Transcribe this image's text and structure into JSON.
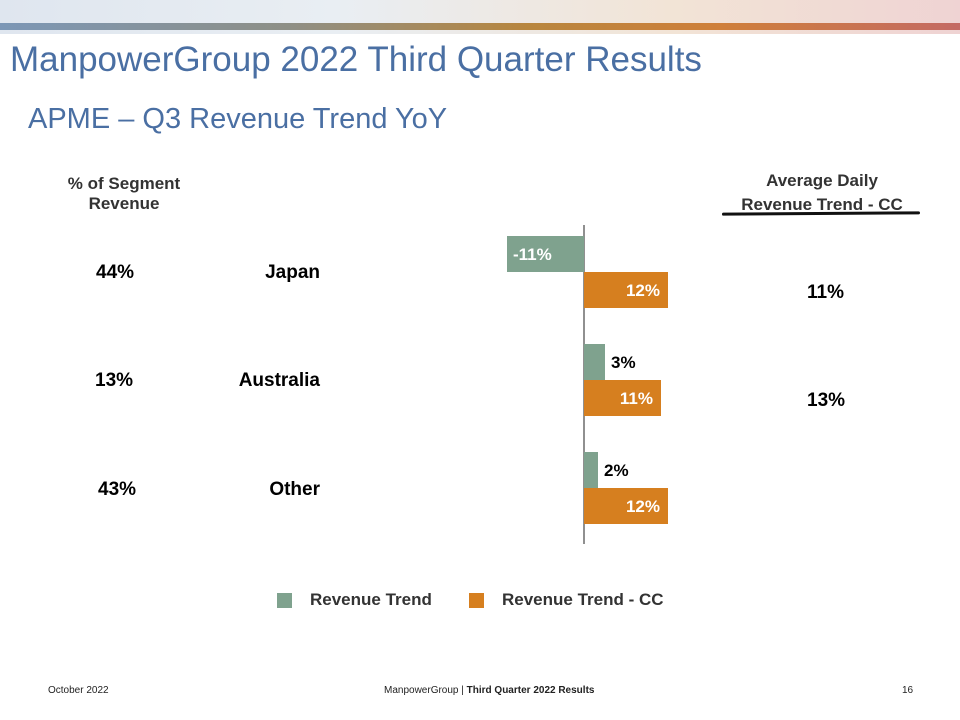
{
  "title": "ManpowerGroup 2022 Third Quarter Results",
  "subtitle": "APME – Q3 Revenue Trend YoY",
  "columns": {
    "segment_header_line1": "% of Segment",
    "segment_header_line2": "Revenue",
    "avg_header_line1": "Average Daily",
    "avg_header_line2": "Revenue Trend - CC"
  },
  "rows": [
    {
      "region": "Japan",
      "segment_pct": "44%",
      "avg_daily": "11%"
    },
    {
      "region": "Australia",
      "segment_pct": "13%",
      "avg_daily": "13%"
    },
    {
      "region": "Other",
      "segment_pct": "43%",
      "avg_daily": ""
    }
  ],
  "chart_data": {
    "type": "bar",
    "orientation": "horizontal",
    "categories": [
      "Japan",
      "Australia",
      "Other"
    ],
    "series": [
      {
        "name": "Revenue Trend",
        "values": [
          -11,
          3,
          2
        ],
        "labels": [
          "-11%",
          "3%",
          "2%"
        ],
        "color": "#7fa28e"
      },
      {
        "name": "Revenue Trend - CC",
        "values": [
          12,
          11,
          12
        ],
        "labels": [
          "12%",
          "11%",
          "12%"
        ],
        "color": "#d67f1f"
      }
    ],
    "xlim": [
      -11,
      12
    ],
    "legend_position": "bottom",
    "grid": false
  },
  "footer": {
    "date": "October 2022",
    "company": "ManpowerGroup",
    "separator": " | ",
    "report": "Third Quarter 2022 Results",
    "page": "16"
  }
}
